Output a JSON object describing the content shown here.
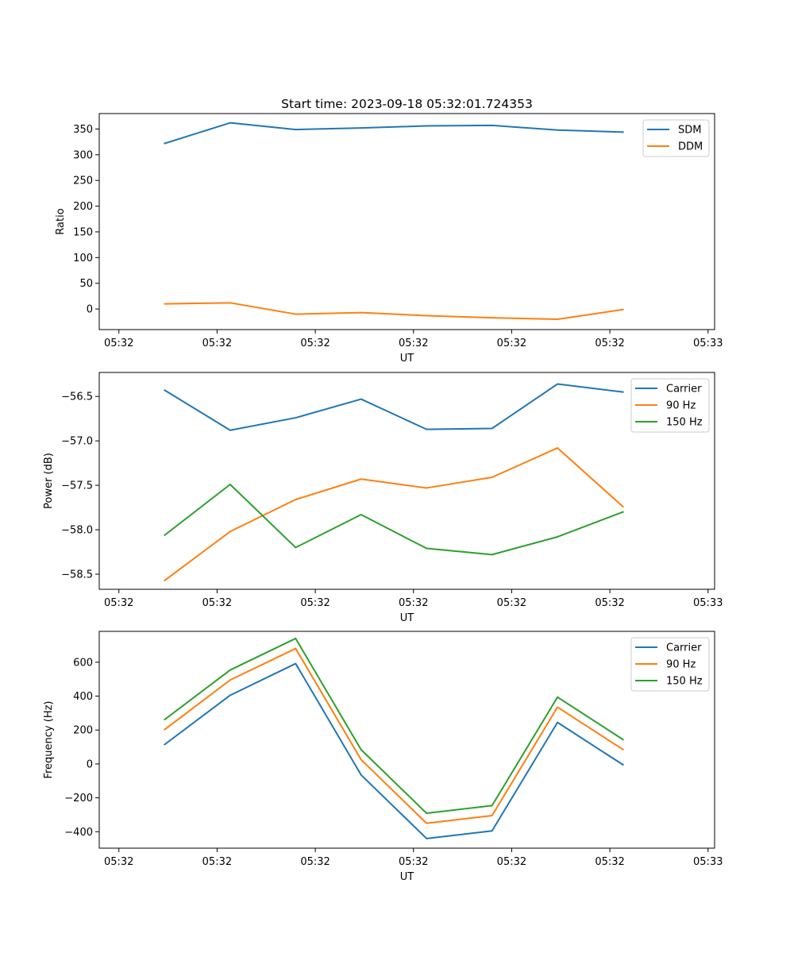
{
  "colors": {
    "blue": "#1f77b4",
    "orange": "#ff7f0e",
    "green": "#2ca02c"
  },
  "chart_data": [
    {
      "type": "line",
      "title": "Start time: 2023-09-18 05:32:01.724353",
      "xlabel": "UT",
      "ylabel": "Ratio",
      "x_tick_labels": [
        "05:32",
        "05:32",
        "05:32",
        "05:32",
        "05:32",
        "05:32",
        "05:33"
      ],
      "xlim": [
        -1,
        8.4
      ],
      "ylim": [
        -40,
        380
      ],
      "yticks": [
        0,
        50,
        100,
        150,
        200,
        250,
        300,
        350
      ],
      "ytick_labels": [
        "0",
        "50",
        "100",
        "150",
        "200",
        "250",
        "300",
        "350"
      ],
      "x": [
        0,
        1,
        2,
        3,
        4,
        5,
        6,
        7
      ],
      "legend_position": "upper-right",
      "series": [
        {
          "name": "SDM",
          "color": "#1f77b4",
          "values": [
            322,
            362,
            349,
            352,
            356,
            357,
            348,
            344
          ]
        },
        {
          "name": "DDM",
          "color": "#ff7f0e",
          "values": [
            10,
            12,
            -10,
            -7,
            -13,
            -17,
            -20,
            -1
          ]
        }
      ]
    },
    {
      "type": "line",
      "title": "",
      "xlabel": "UT",
      "ylabel": "Power (dB)",
      "x_tick_labels": [
        "05:32",
        "05:32",
        "05:32",
        "05:32",
        "05:32",
        "05:32",
        "05:33"
      ],
      "xlim": [
        -1,
        8.4
      ],
      "ylim": [
        -58.67,
        -56.23
      ],
      "yticks": [
        -58.5,
        -58.0,
        -57.5,
        -57.0,
        -56.5
      ],
      "ytick_labels": [
        "−58.5",
        "−58.0",
        "−57.5",
        "−57.0",
        "−56.5"
      ],
      "x": [
        0,
        1,
        2,
        3,
        4,
        5,
        6,
        7
      ],
      "legend_position": "upper-right",
      "series": [
        {
          "name": "Carrier",
          "color": "#1f77b4",
          "values": [
            -56.43,
            -56.88,
            -56.74,
            -56.53,
            -56.87,
            -56.86,
            -56.36,
            -56.45
          ]
        },
        {
          "name": "90 Hz",
          "color": "#ff7f0e",
          "values": [
            -58.57,
            -58.02,
            -57.66,
            -57.43,
            -57.53,
            -57.41,
            -57.08,
            -57.74
          ]
        },
        {
          "name": "150 Hz",
          "color": "#2ca02c",
          "values": [
            -58.06,
            -57.49,
            -58.2,
            -57.83,
            -58.21,
            -58.28,
            -58.08,
            -57.8
          ]
        }
      ]
    },
    {
      "type": "line",
      "title": "",
      "xlabel": "UT",
      "ylabel": "Frequency (Hz)",
      "x_tick_labels": [
        "05:32",
        "05:32",
        "05:32",
        "05:32",
        "05:32",
        "05:32",
        "05:33"
      ],
      "xlim": [
        -1,
        8.4
      ],
      "ylim": [
        -497,
        782
      ],
      "yticks": [
        -400,
        -200,
        0,
        200,
        400,
        600
      ],
      "ytick_labels": [
        "−400",
        "−200",
        "0",
        "200",
        "400",
        "600"
      ],
      "x": [
        0,
        1,
        2,
        3,
        4,
        5,
        6,
        7
      ],
      "legend_position": "upper-right",
      "series": [
        {
          "name": "Carrier",
          "color": "#1f77b4",
          "values": [
            115,
            405,
            592,
            -65,
            -440,
            -395,
            245,
            -5
          ]
        },
        {
          "name": "90 Hz",
          "color": "#ff7f0e",
          "values": [
            203,
            495,
            681,
            25,
            -350,
            -305,
            335,
            85
          ]
        },
        {
          "name": "150 Hz",
          "color": "#2ca02c",
          "values": [
            262,
            554,
            740,
            84,
            -291,
            -246,
            394,
            144
          ]
        }
      ]
    }
  ]
}
